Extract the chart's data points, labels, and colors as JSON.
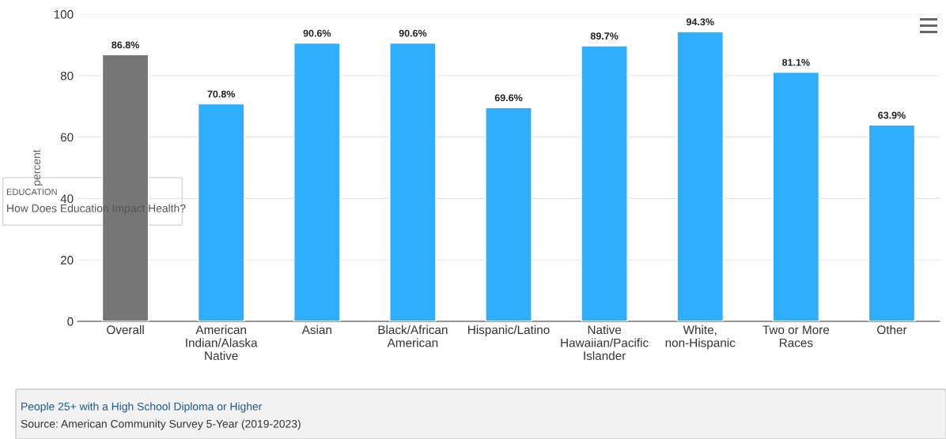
{
  "chart_data": {
    "type": "bar",
    "ylabel": "percent",
    "categories": [
      "Overall",
      "American Indian/Alaska Native",
      "Asian",
      "Black/African American",
      "Hispanic/Latino",
      "Native Hawaiian/Pacific Islander",
      "White, non-Hispanic",
      "Two or More Races",
      "Other"
    ],
    "values": [
      86.8,
      70.8,
      90.6,
      90.6,
      69.6,
      89.7,
      94.3,
      81.1,
      63.9
    ],
    "colors": [
      "#767676",
      "#2eaefc",
      "#2eaefc",
      "#2eaefc",
      "#2eaefc",
      "#2eaefc",
      "#2eaefc",
      "#2eaefc",
      "#2eaefc"
    ],
    "value_labels": [
      "86.8%",
      "70.8%",
      "90.6%",
      "90.6%",
      "69.6%",
      "89.7%",
      "94.3%",
      "81.1%",
      "63.9%"
    ],
    "ylim": [
      0,
      100
    ],
    "yticks": [
      0,
      20,
      40,
      60,
      80,
      100
    ],
    "grid": "y",
    "legend": false,
    "annotations": [
      "EDUCATION",
      "How Does Education Impact Health?",
      "People 25+ with a High School Diploma or Higher",
      "Source: American Community Survey 5-Year (2019-2023)"
    ]
  }
}
